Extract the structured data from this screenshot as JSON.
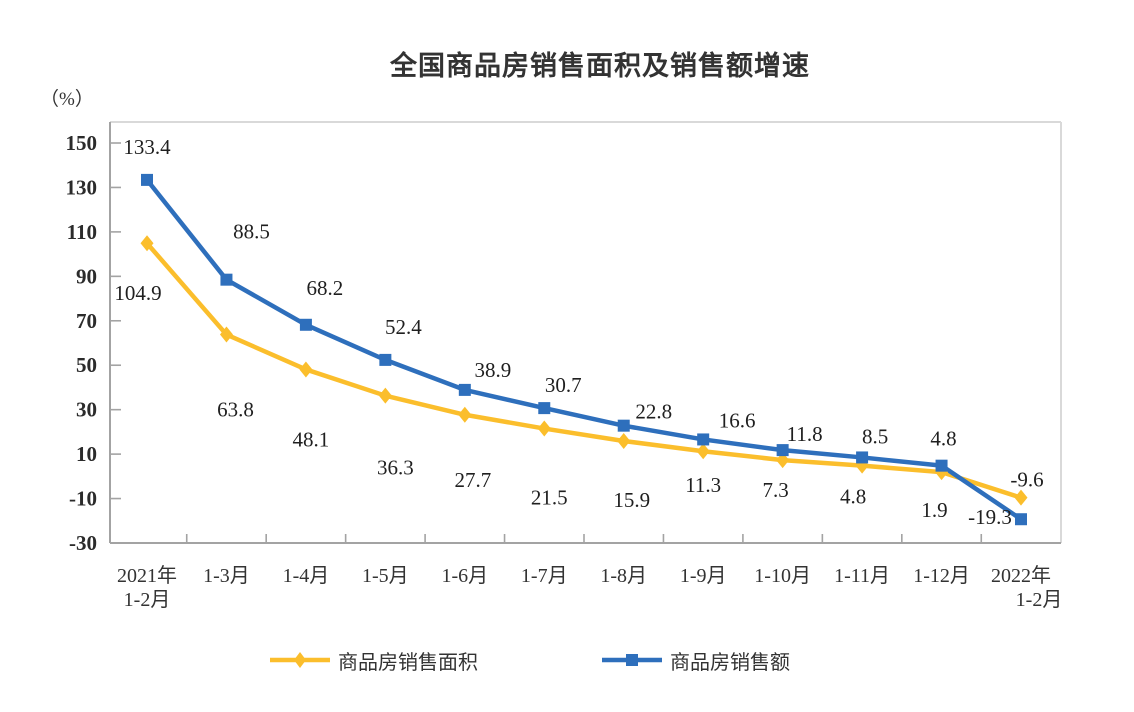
{
  "title": "全国商品房销售面积及销售额增速",
  "unit_label": "（%）",
  "chart_data": {
    "type": "line",
    "title": "全国商品房销售面积及销售额增速",
    "ylabel": "（%）",
    "ylim": [
      -30,
      150
    ],
    "ytick_step": 20,
    "y_tick_labels": [
      "150",
      "130",
      "110",
      "90",
      "70",
      "50",
      "30",
      "10",
      "-10",
      "-30"
    ],
    "grid": false,
    "legend_position": "bottom",
    "categories": [
      "2021年\n1-2月",
      "1-3月",
      "1-4月",
      "1-5月",
      "1-6月",
      "1-7月",
      "1-8月",
      "1-9月",
      "1-10月",
      "1-11月",
      "1-12月",
      "2022年\n1-2月"
    ],
    "series": [
      {
        "name": "商品房销售面积",
        "color": "#FBBE2C",
        "marker": "diamond",
        "values": [
          104.9,
          63.8,
          48.1,
          36.3,
          27.7,
          21.5,
          15.9,
          11.3,
          7.3,
          4.8,
          1.9,
          -9.6
        ],
        "label_offsets": [
          [
            -9,
            50
          ],
          [
            9,
            75
          ],
          [
            5,
            70
          ],
          [
            10,
            72
          ],
          [
            8,
            65
          ],
          [
            5,
            69
          ],
          [
            8,
            59
          ],
          [
            0,
            34
          ],
          [
            -7,
            30
          ],
          [
            -9,
            31
          ],
          [
            -7,
            38
          ],
          [
            6,
            -18
          ]
        ]
      },
      {
        "name": "商品房销售额",
        "color": "#2E6FBC",
        "marker": "square",
        "values": [
          133.4,
          88.5,
          68.2,
          52.4,
          38.9,
          30.7,
          22.8,
          16.6,
          11.8,
          8.5,
          4.8,
          -19.3
        ],
        "label_offsets": [
          [
            0,
            -33
          ],
          [
            25,
            -48
          ],
          [
            19,
            -37
          ],
          [
            18,
            -33
          ],
          [
            28,
            -20
          ],
          [
            19,
            -23
          ],
          [
            30,
            -14
          ],
          [
            34,
            -19
          ],
          [
            22,
            -16
          ],
          [
            13,
            -21
          ],
          [
            2,
            -27
          ],
          [
            -31,
            -2
          ]
        ]
      }
    ]
  }
}
